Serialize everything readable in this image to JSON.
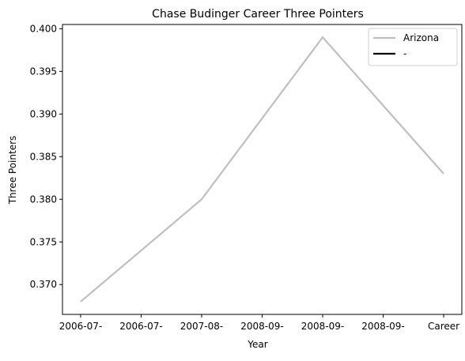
{
  "chart_data": {
    "type": "line",
    "title": "Chase Budinger Career Three Pointers",
    "xlabel": "Year",
    "ylabel": "Three Pointers",
    "categories": [
      "2006-07-",
      "2006-07-",
      "2007-08-",
      "2008-09-",
      "2008-09-",
      "2008-09-",
      "Career"
    ],
    "x": [
      0,
      1,
      2,
      3,
      4,
      5,
      6
    ],
    "series": [
      {
        "name": "Arizona",
        "color": "#bfbfbf",
        "x": [
          0,
          2,
          4,
          6
        ],
        "values": [
          0.368,
          0.38,
          0.399,
          0.383
        ]
      },
      {
        "name": "-",
        "color": "#000000",
        "x": [],
        "values": []
      }
    ],
    "ylim": [
      0.3665,
      0.4005
    ],
    "xlim": [
      -0.3,
      6.3
    ],
    "yticks": [
      0.37,
      0.375,
      0.38,
      0.385,
      0.39,
      0.395,
      0.4
    ],
    "ytick_labels": [
      "0.370",
      "0.375",
      "0.380",
      "0.385",
      "0.390",
      "0.395",
      "0.400"
    ],
    "grid": false,
    "legend_position": "top-right"
  }
}
